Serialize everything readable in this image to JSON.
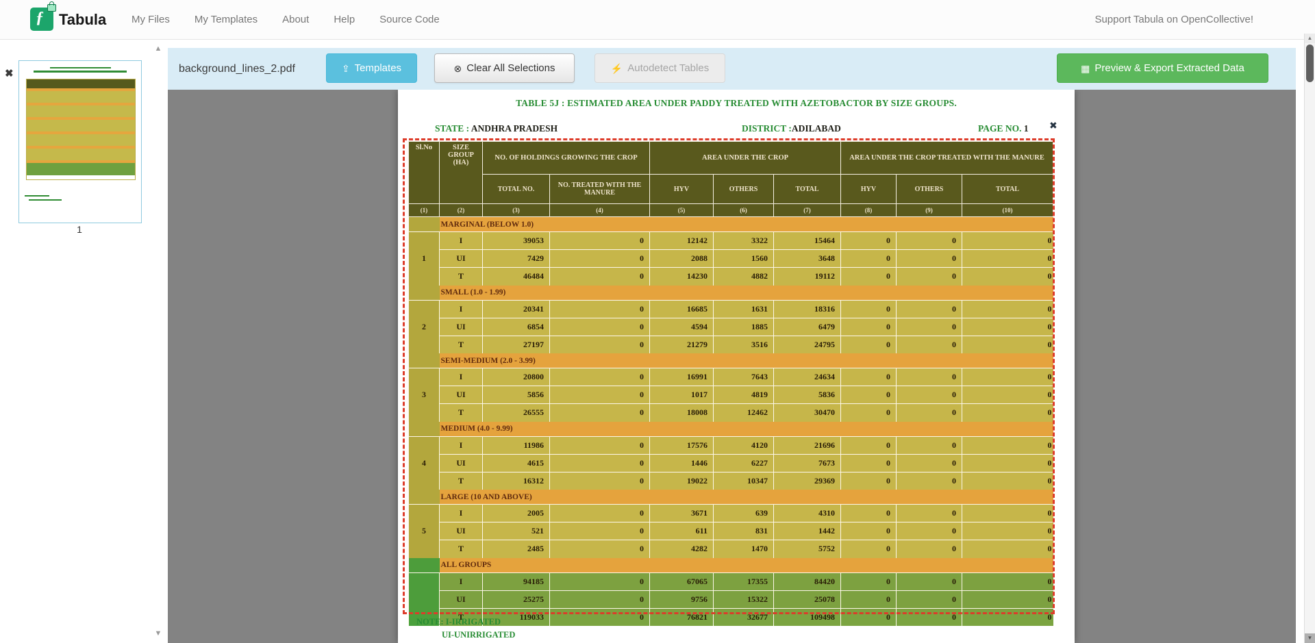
{
  "navbar": {
    "brand": "Tabula",
    "links": [
      "My Files",
      "My Templates",
      "About",
      "Help",
      "Source Code"
    ],
    "support_link": "Support Tabula on OpenCollective!"
  },
  "toolbar": {
    "filename": "background_lines_2.pdf",
    "templates_label": "Templates",
    "clear_label": "Clear All Selections",
    "autodetect_label": "Autodetect Tables",
    "export_label": "Preview & Export Extracted Data"
  },
  "sidebar": {
    "page_number": "1"
  },
  "icons": {
    "logo_glyph": "ƒ",
    "templates": "⇪",
    "clear": "⊗",
    "autodetect": "⚡",
    "export": "▦",
    "remove_file": "✖",
    "close_selection": "✖",
    "scroll_up": "▲",
    "scroll_down": "▼"
  },
  "colors": {
    "accent_blue": "#5bc0de",
    "accent_green": "#5cb85c",
    "toolbar_bg": "#d9ecf6",
    "selection_red": "#dd3c2a",
    "header_olive": "#565a1d",
    "band_orange": "#e5a63e",
    "row_olive": "#c5b94b",
    "row_green": "#7ba441",
    "slno_green": "#4aa03c"
  },
  "doc": {
    "title": "TABLE 5J : ESTIMATED AREA UNDER PADDY  TREATED WITH AZETOBACTOR BY SIZE GROUPS.",
    "state_label": "STATE :",
    "state_value": "ANDHRA PRADESH",
    "district_label": "DISTRICT :",
    "district_value": "ADILABAD",
    "page_label": "PAGE NO.",
    "page_value": "1",
    "note_line1": "NOTE: I-IRRIGATED",
    "note_line2": "UI-UNIRRIGATED"
  },
  "table": {
    "header": {
      "slno": "Sl.No",
      "size_group": "SIZE GROUP (HA)",
      "holdings": "NO. OF HOLDINGS GROWING THE CROP",
      "area": "AREA UNDER THE CROP",
      "area_treated": "AREA UNDER THE CROP TREATED WITH THE  MANURE",
      "sub": [
        "TOTAL NO.",
        "NO. TREATED WITH THE  MANURE",
        "HYV",
        "OTHERS",
        "TOTAL",
        "HYV",
        "OTHERS",
        "TOTAL"
      ],
      "col_numbers": [
        "(1)",
        "(2)",
        "(3)",
        "(4)",
        "(5)",
        "(6)",
        "(7)",
        "(8)",
        "(9)",
        "(10)"
      ]
    },
    "sections": [
      {
        "slno": "1",
        "name": "MARGINAL (BELOW 1.0)",
        "rows": [
          {
            "label": "I",
            "values": [
              "39053",
              "0",
              "12142",
              "3322",
              "15464",
              "0",
              "0",
              "0"
            ]
          },
          {
            "label": "UI",
            "values": [
              "7429",
              "0",
              "2088",
              "1560",
              "3648",
              "0",
              "0",
              "0"
            ]
          },
          {
            "label": "T",
            "values": [
              "46484",
              "0",
              "14230",
              "4882",
              "19112",
              "0",
              "0",
              "0"
            ]
          }
        ]
      },
      {
        "slno": "2",
        "name": "SMALL (1.0 - 1.99)",
        "rows": [
          {
            "label": "I",
            "values": [
              "20341",
              "0",
              "16685",
              "1631",
              "18316",
              "0",
              "0",
              "0"
            ]
          },
          {
            "label": "UI",
            "values": [
              "6854",
              "0",
              "4594",
              "1885",
              "6479",
              "0",
              "0",
              "0"
            ]
          },
          {
            "label": "T",
            "values": [
              "27197",
              "0",
              "21279",
              "3516",
              "24795",
              "0",
              "0",
              "0"
            ]
          }
        ]
      },
      {
        "slno": "3",
        "name": "SEMI-MEDIUM (2.0 - 3.99)",
        "rows": [
          {
            "label": "I",
            "values": [
              "20800",
              "0",
              "16991",
              "7643",
              "24634",
              "0",
              "0",
              "0"
            ]
          },
          {
            "label": "UI",
            "values": [
              "5856",
              "0",
              "1017",
              "4819",
              "5836",
              "0",
              "0",
              "0"
            ]
          },
          {
            "label": "T",
            "values": [
              "26555",
              "0",
              "18008",
              "12462",
              "30470",
              "0",
              "0",
              "0"
            ]
          }
        ]
      },
      {
        "slno": "4",
        "name": "MEDIUM (4.0 - 9.99)",
        "rows": [
          {
            "label": "I",
            "values": [
              "11986",
              "0",
              "17576",
              "4120",
              "21696",
              "0",
              "0",
              "0"
            ]
          },
          {
            "label": "UI",
            "values": [
              "4615",
              "0",
              "1446",
              "6227",
              "7673",
              "0",
              "0",
              "0"
            ]
          },
          {
            "label": "T",
            "values": [
              "16312",
              "0",
              "19022",
              "10347",
              "29369",
              "0",
              "0",
              "0"
            ]
          }
        ]
      },
      {
        "slno": "5",
        "name": "LARGE (10 AND ABOVE)",
        "rows": [
          {
            "label": "I",
            "values": [
              "2005",
              "0",
              "3671",
              "639",
              "4310",
              "0",
              "0",
              "0"
            ]
          },
          {
            "label": "UI",
            "values": [
              "521",
              "0",
              "611",
              "831",
              "1442",
              "0",
              "0",
              "0"
            ]
          },
          {
            "label": "T",
            "values": [
              "2485",
              "0",
              "4282",
              "1470",
              "5752",
              "0",
              "0",
              "0"
            ]
          }
        ]
      },
      {
        "slno": "",
        "name": "ALL GROUPS",
        "green": true,
        "rows": [
          {
            "label": "I",
            "values": [
              "94185",
              "0",
              "67065",
              "17355",
              "84420",
              "0",
              "0",
              "0"
            ]
          },
          {
            "label": "UI",
            "values": [
              "25275",
              "0",
              "9756",
              "15322",
              "25078",
              "0",
              "0",
              "0"
            ]
          },
          {
            "label": "T",
            "values": [
              "119033",
              "0",
              "76821",
              "32677",
              "109498",
              "0",
              "0",
              "0"
            ]
          }
        ]
      }
    ]
  }
}
